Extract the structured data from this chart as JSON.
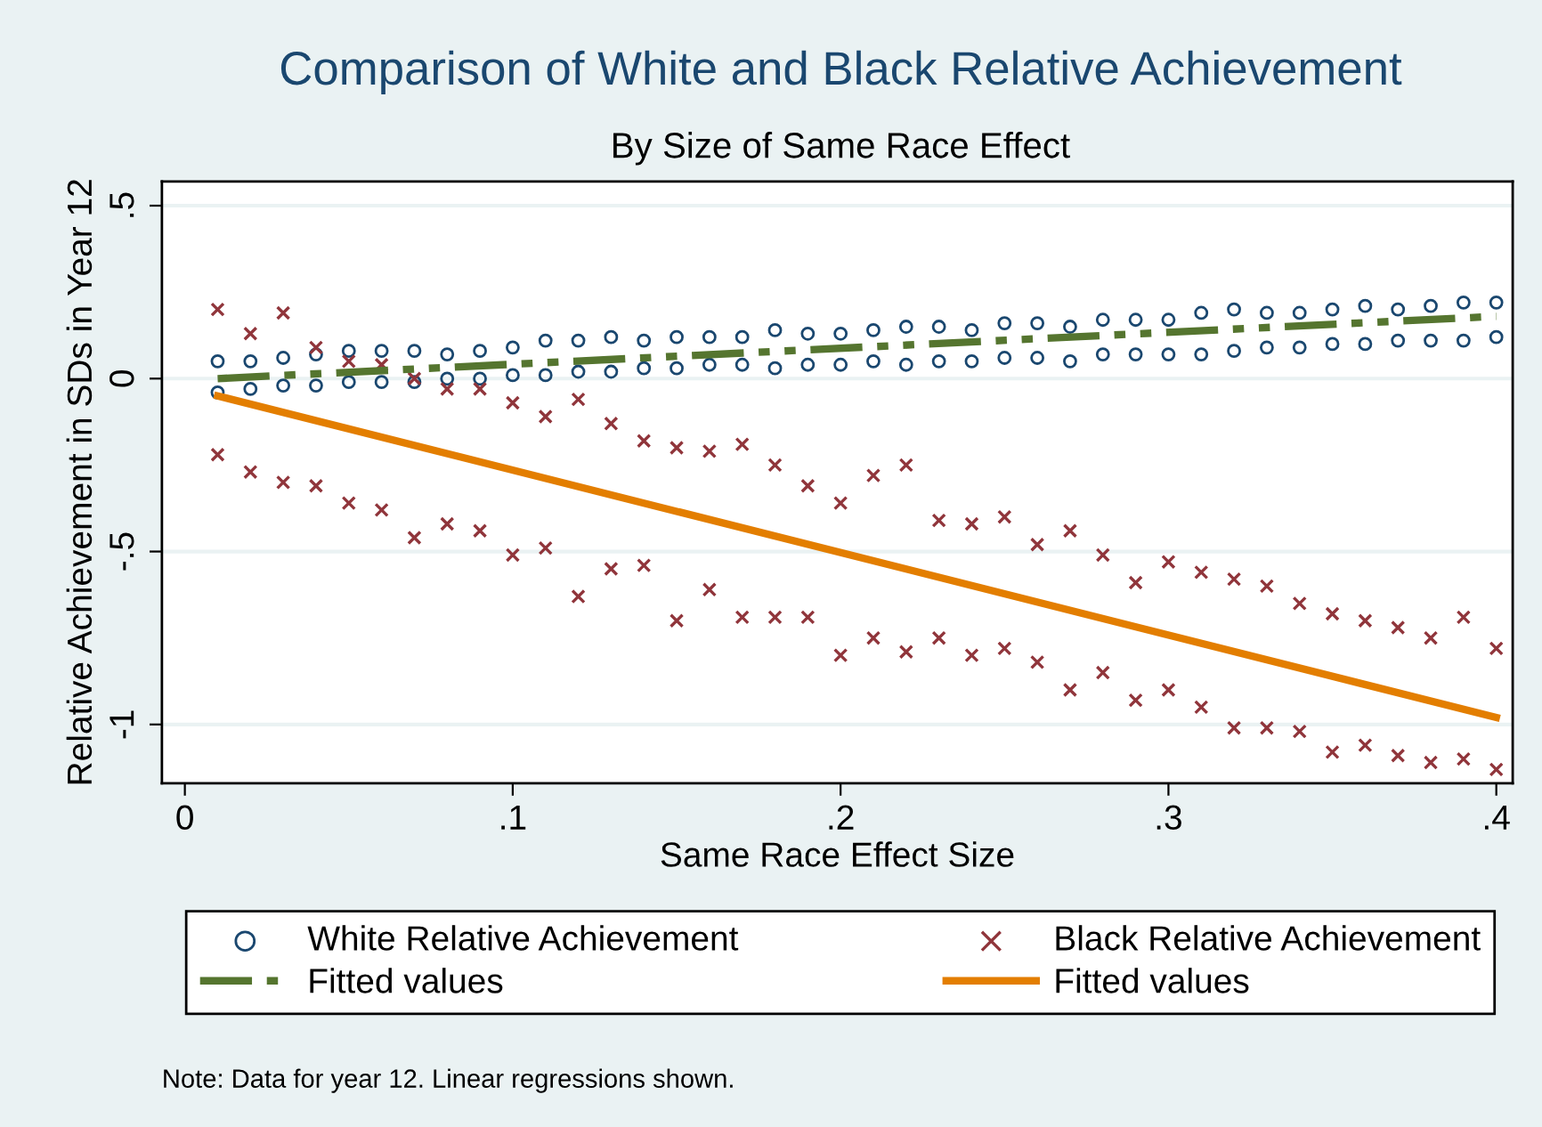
{
  "chart_data": {
    "type": "scatter",
    "title": "Comparison of White and Black Relative Achievement",
    "subtitle": "By Size of Same Race Effect",
    "xlabel": "Same Race Effect Size",
    "ylabel": "Relative Achievement in SDs in Year 12",
    "xlim": [
      -0.007,
      0.405
    ],
    "ylim": [
      -1.17,
      0.57
    ],
    "xticks": [
      0,
      {
        "value": 0.1,
        "label": ".1"
      },
      {
        "value": 0.2,
        "label": ".2"
      },
      {
        "value": 0.3,
        "label": ".3"
      },
      {
        "value": 0.4,
        "label": ".4"
      }
    ],
    "yticks": [
      {
        "value": -1,
        "label": "-1"
      },
      {
        "value": -0.5,
        "label": "-.5"
      },
      0,
      {
        "value": 0.5,
        "label": ".5"
      }
    ],
    "grid": "y",
    "legend": "bottom",
    "series": [
      {
        "name": "White Relative Achievement",
        "marker": "circle",
        "color": "#1a476f",
        "x": [
          0.01,
          0.02,
          0.03,
          0.04,
          0.05,
          0.06,
          0.07,
          0.08,
          0.09,
          0.1,
          0.11,
          0.12,
          0.13,
          0.14,
          0.15,
          0.16,
          0.17,
          0.18,
          0.19,
          0.2,
          0.21,
          0.22,
          0.23,
          0.24,
          0.25,
          0.26,
          0.27,
          0.28,
          0.29,
          0.3,
          0.31,
          0.32,
          0.33,
          0.34,
          0.35,
          0.36,
          0.37,
          0.38,
          0.39,
          0.4,
          0.01,
          0.02,
          0.03,
          0.04,
          0.05,
          0.06,
          0.07,
          0.08,
          0.09,
          0.1,
          0.11,
          0.12,
          0.13,
          0.14,
          0.15,
          0.16,
          0.17,
          0.18,
          0.19,
          0.2,
          0.21,
          0.22,
          0.23,
          0.24,
          0.25,
          0.26,
          0.27,
          0.28,
          0.29,
          0.3,
          0.31,
          0.32,
          0.33,
          0.34,
          0.35,
          0.36,
          0.37,
          0.38,
          0.39,
          0.4
        ],
        "values": [
          0.05,
          0.05,
          0.06,
          0.07,
          0.08,
          0.08,
          0.08,
          0.07,
          0.08,
          0.09,
          0.11,
          0.11,
          0.12,
          0.11,
          0.12,
          0.12,
          0.12,
          0.14,
          0.13,
          0.13,
          0.14,
          0.15,
          0.15,
          0.14,
          0.16,
          0.16,
          0.15,
          0.17,
          0.17,
          0.17,
          0.19,
          0.2,
          0.19,
          0.19,
          0.2,
          0.21,
          0.2,
          0.21,
          0.22,
          0.22,
          -0.04,
          -0.03,
          -0.02,
          -0.02,
          -0.01,
          -0.01,
          -0.01,
          0.0,
          0.0,
          0.01,
          0.01,
          0.02,
          0.02,
          0.03,
          0.03,
          0.04,
          0.04,
          0.03,
          0.04,
          0.04,
          0.05,
          0.04,
          0.05,
          0.05,
          0.06,
          0.06,
          0.05,
          0.07,
          0.07,
          0.07,
          0.07,
          0.08,
          0.09,
          0.09,
          0.1,
          0.1,
          0.11,
          0.11,
          0.11,
          0.12
        ]
      },
      {
        "name": "Black Relative Achievement",
        "marker": "cross",
        "color": "#90353b",
        "x": [
          0.01,
          0.02,
          0.03,
          0.04,
          0.05,
          0.06,
          0.07,
          0.08,
          0.09,
          0.1,
          0.11,
          0.12,
          0.13,
          0.14,
          0.15,
          0.16,
          0.17,
          0.18,
          0.19,
          0.2,
          0.21,
          0.22,
          0.23,
          0.24,
          0.25,
          0.26,
          0.27,
          0.28,
          0.29,
          0.3,
          0.31,
          0.32,
          0.33,
          0.34,
          0.35,
          0.36,
          0.37,
          0.38,
          0.39,
          0.4,
          0.01,
          0.02,
          0.03,
          0.04,
          0.05,
          0.06,
          0.07,
          0.08,
          0.09,
          0.1,
          0.11,
          0.12,
          0.13,
          0.14,
          0.15,
          0.16,
          0.17,
          0.18,
          0.19,
          0.2,
          0.21,
          0.22,
          0.23,
          0.24,
          0.25,
          0.26,
          0.27,
          0.28,
          0.29,
          0.3,
          0.31,
          0.32,
          0.33,
          0.34,
          0.35,
          0.36,
          0.37,
          0.38,
          0.39,
          0.4
        ],
        "values": [
          0.2,
          0.13,
          0.19,
          0.09,
          0.05,
          0.04,
          0.0,
          -0.03,
          -0.03,
          -0.07,
          -0.11,
          -0.06,
          -0.13,
          -0.18,
          -0.2,
          -0.21,
          -0.19,
          -0.25,
          -0.31,
          -0.36,
          -0.28,
          -0.25,
          -0.41,
          -0.42,
          -0.4,
          -0.48,
          -0.44,
          -0.51,
          -0.59,
          -0.53,
          -0.56,
          -0.58,
          -0.6,
          -0.65,
          -0.68,
          -0.7,
          -0.72,
          -0.75,
          -0.69,
          -0.78,
          -0.22,
          -0.27,
          -0.3,
          -0.31,
          -0.36,
          -0.38,
          -0.46,
          -0.42,
          -0.44,
          -0.51,
          -0.49,
          -0.63,
          -0.55,
          -0.54,
          -0.7,
          -0.61,
          -0.69,
          -0.69,
          -0.69,
          -0.8,
          -0.75,
          -0.79,
          -0.75,
          -0.8,
          -0.78,
          -0.82,
          -0.9,
          -0.85,
          -0.93,
          -0.9,
          -0.95,
          -1.01,
          -1.01,
          -1.02,
          -1.08,
          -1.06,
          -1.09,
          -1.11,
          -1.1,
          -1.13
        ]
      },
      {
        "name": "Fitted values",
        "type": "line",
        "marker": "none",
        "line_style": "dashed",
        "color": "#55752f",
        "x": [
          0.01,
          0.4
        ],
        "values": [
          0.0,
          0.18
        ]
      },
      {
        "name": "Fitted values",
        "type": "line",
        "marker": "none",
        "line_style": "solid",
        "color": "#e37e00",
        "x": [
          0.01,
          0.4
        ],
        "values": [
          -0.05,
          -0.98
        ]
      }
    ],
    "annotations": [
      "Note: Data for year 12. Linear regressions shown."
    ]
  }
}
